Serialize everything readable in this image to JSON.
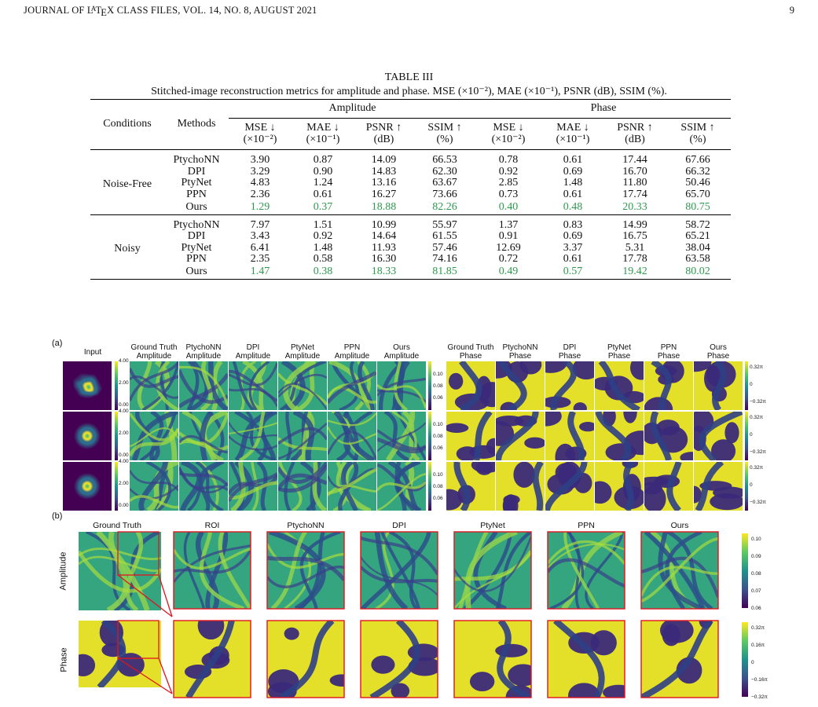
{
  "header": {
    "journal": "JOURNAL OF L",
    "latex_a": "A",
    "latex_rest": "T",
    "latex_e": "E",
    "latex_x": "X CLASS FILES, VOL. 14, NO. 8, AUGUST 2021",
    "page_number": "9"
  },
  "table": {
    "label": "TABLE III",
    "caption": "Stitched-image reconstruction metrics for amplitude and phase. MSE (×10⁻²), MAE (×10⁻¹), PSNR (dB), SSIM (%).",
    "col_conditions": "Conditions",
    "col_methods": "Methods",
    "group_amplitude": "Amplitude",
    "group_phase": "Phase",
    "metric_headers": [
      {
        "name": "MSE ↓",
        "unit": "(×10⁻²)"
      },
      {
        "name": "MAE ↓",
        "unit": "(×10⁻¹)"
      },
      {
        "name": "PSNR ↑",
        "unit": "(dB)"
      },
      {
        "name": "SSIM ↑",
        "unit": "(%)"
      },
      {
        "name": "MSE ↓",
        "unit": "(×10⁻²)"
      },
      {
        "name": "MAE ↓",
        "unit": "(×10⁻¹)"
      },
      {
        "name": "PSNR ↑",
        "unit": "(dB)"
      },
      {
        "name": "SSIM ↑",
        "unit": "(%)"
      }
    ],
    "groups": [
      {
        "condition": "Noise-Free",
        "rows": [
          {
            "method": "PtychoNN",
            "values": [
              "3.90",
              "0.87",
              "14.09",
              "66.53",
              "0.78",
              "0.61",
              "17.44",
              "67.66"
            ]
          },
          {
            "method": "DPI",
            "values": [
              "3.29",
              "0.90",
              "14.83",
              "62.30",
              "0.92",
              "0.69",
              "16.70",
              "66.32"
            ]
          },
          {
            "method": "PtyNet",
            "values": [
              "4.83",
              "1.24",
              "13.16",
              "63.67",
              "2.85",
              "1.48",
              "11.80",
              "50.46"
            ]
          },
          {
            "method": "PPN",
            "values": [
              "2.36",
              "0.61",
              "16.27",
              "73.66",
              "0.73",
              "0.61",
              "17.74",
              "65.70"
            ]
          },
          {
            "method": "Ours",
            "best": true,
            "values": [
              "1.29",
              "0.37",
              "18.88",
              "82.26",
              "0.40",
              "0.48",
              "20.33",
              "80.75"
            ]
          }
        ]
      },
      {
        "condition": "Noisy",
        "rows": [
          {
            "method": "PtychoNN",
            "values": [
              "7.97",
              "1.51",
              "10.99",
              "55.97",
              "1.37",
              "0.83",
              "14.99",
              "58.72"
            ]
          },
          {
            "method": "DPI",
            "values": [
              "3.43",
              "0.92",
              "14.64",
              "61.55",
              "0.91",
              "0.69",
              "16.75",
              "65.21"
            ]
          },
          {
            "method": "PtyNet",
            "values": [
              "6.41",
              "1.48",
              "11.93",
              "57.46",
              "12.69",
              "3.37",
              "5.31",
              "38.04"
            ]
          },
          {
            "method": "PPN",
            "values": [
              "2.35",
              "0.58",
              "16.30",
              "74.16",
              "0.72",
              "0.61",
              "17.78",
              "63.58"
            ]
          },
          {
            "method": "Ours",
            "best": true,
            "values": [
              "1.47",
              "0.38",
              "18.33",
              "81.85",
              "0.49",
              "0.57",
              "19.42",
              "80.02"
            ]
          }
        ]
      }
    ]
  },
  "figure": {
    "label_a": "(a)",
    "label_b": "(b)",
    "input_header": "Input",
    "amp_headers": [
      [
        "Ground Truth",
        "Amplitude"
      ],
      [
        "PtychoNN",
        "Amplitude"
      ],
      [
        "DPI",
        "Amplitude"
      ],
      [
        "PtyNet",
        "Amplitude"
      ],
      [
        "PPN",
        "Amplitude"
      ],
      [
        "Ours",
        "Amplitude"
      ]
    ],
    "phase_headers": [
      [
        "Ground Truth",
        "Phase"
      ],
      [
        "PtychoNN",
        "Phase"
      ],
      [
        "DPI",
        "Phase"
      ],
      [
        "PtyNet",
        "Phase"
      ],
      [
        "PPN",
        "Phase"
      ],
      [
        "Ours",
        "Phase"
      ]
    ],
    "input_ticks": [
      "4.00",
      "2.00",
      "0.00"
    ],
    "amp_ticks": [
      "0.10",
      "0.08",
      "0.06"
    ],
    "phase_ticks": [
      "0.32π",
      "0",
      "−0.32π"
    ],
    "b_headers": [
      "Ground Truth",
      "ROI",
      "PtychoNN",
      "DPI",
      "PtyNet",
      "PPN",
      "Ours"
    ],
    "b_row_amp": "Amplitude",
    "b_row_phase": "Phase",
    "b_amp_ticks": [
      "0.10",
      "0.09",
      "0.08",
      "0.07",
      "0.06"
    ],
    "b_phase_ticks": [
      "0.32π",
      "0.16π",
      "0",
      "−0.16π",
      "−0.32π"
    ],
    "colors": {
      "viridis_dark": "#440154",
      "viridis_mid": "#21918c",
      "viridis_green": "#5ec962",
      "viridis_yellow": "#fde725",
      "roi_red": "#e0141e",
      "best_green": "#2e9a4e"
    }
  }
}
